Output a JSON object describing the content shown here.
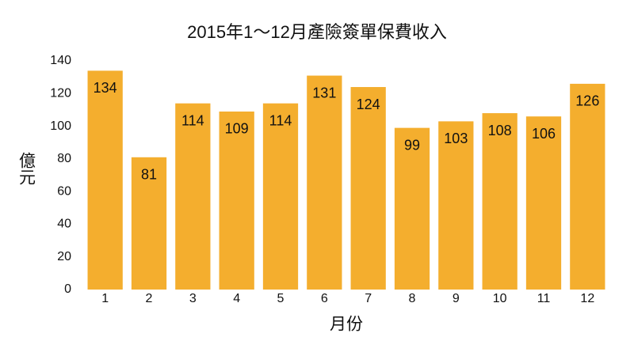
{
  "chart_data": {
    "type": "bar",
    "title": "2015年1～12月產險簽單保費收入",
    "x_label": "月份",
    "y_label": "億元",
    "categories": [
      "1",
      "2",
      "3",
      "4",
      "5",
      "6",
      "7",
      "8",
      "9",
      "10",
      "11",
      "12"
    ],
    "values": [
      134,
      81,
      114,
      109,
      114,
      131,
      124,
      99,
      103,
      108,
      106,
      126
    ],
    "color": "#f4ae2e",
    "ylim": [
      0,
      140
    ],
    "yticks": [
      0,
      20,
      40,
      60,
      80,
      100,
      120,
      140
    ],
    "grid": false
  }
}
